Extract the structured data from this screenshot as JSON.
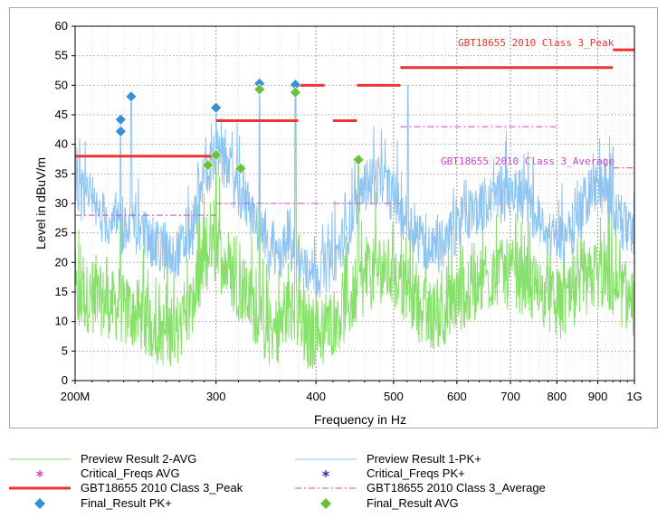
{
  "chart_data": {
    "type": "line",
    "title": "",
    "xlabel": "Frequency in Hz",
    "ylabel": "Level in dBuV/m",
    "xscale": "log",
    "xlim": [
      200,
      1000
    ],
    "ylim": [
      0,
      60
    ],
    "grid": true,
    "yticks": [
      "0",
      "5",
      "10",
      "15",
      "20",
      "25",
      "30",
      "35",
      "40",
      "45",
      "50",
      "55",
      "60"
    ],
    "xticks": [
      {
        "value": 200,
        "label": "200M"
      },
      {
        "value": 300,
        "label": "300"
      },
      {
        "value": 400,
        "label": "400"
      },
      {
        "value": 500,
        "label": "500"
      },
      {
        "value": 600,
        "label": "600"
      },
      {
        "value": 700,
        "label": "700"
      },
      {
        "value": 800,
        "label": "800"
      },
      {
        "value": 900,
        "label": "900"
      },
      {
        "value": 1000,
        "label": "1G"
      }
    ],
    "limit_lines": {
      "peak": {
        "label": "GBT18655 2010  Class 3_Peak",
        "color": "#ee3333",
        "segments": [
          {
            "x": [
              200,
              300
            ],
            "y": 38
          },
          {
            "x": [
              300,
              380
            ],
            "y": 44
          },
          {
            "x": [
              380,
              410
            ],
            "y": 50
          },
          {
            "x": [
              420,
              450
            ],
            "y": 44
          },
          {
            "x": [
              450,
              510
            ],
            "y": 50
          },
          {
            "x": [
              510,
              940
            ],
            "y": 53
          },
          {
            "x": [
              940,
              1000
            ],
            "y": 56
          }
        ]
      },
      "average": {
        "label": "GBT18655 2010  Class 3_Average",
        "color": "#cc44cc",
        "segments": [
          {
            "x": [
              200,
              300
            ],
            "y": 28
          },
          {
            "x": [
              300,
              380
            ],
            "y": 30
          },
          {
            "x": [
              380,
              410
            ],
            "y": 30
          },
          {
            "x": [
              420,
              450
            ],
            "y": 30
          },
          {
            "x": [
              450,
              510
            ],
            "y": 30
          },
          {
            "x": [
              510,
              800
            ],
            "y": 43
          },
          {
            "x": [
              940,
              1000
            ],
            "y": 36
          }
        ]
      }
    },
    "final_pk": {
      "name": "Final_Result PK+",
      "color": "#3a8fd6",
      "points": [
        {
          "x": 228,
          "y": 44.2
        },
        {
          "x": 228,
          "y": 42.2
        },
        {
          "x": 235,
          "y": 48.1
        },
        {
          "x": 300,
          "y": 46.2
        },
        {
          "x": 340,
          "y": 50.3
        },
        {
          "x": 377,
          "y": 50.1
        }
      ]
    },
    "final_avg": {
      "name": "Final_Result AVG",
      "color": "#6ac23a",
      "points": [
        {
          "x": 293,
          "y": 36.5
        },
        {
          "x": 300,
          "y": 38.2
        },
        {
          "x": 322,
          "y": 35.9
        },
        {
          "x": 340,
          "y": 49.3
        },
        {
          "x": 377,
          "y": 48.8
        },
        {
          "x": 452,
          "y": 37.4
        }
      ]
    },
    "pk_trace": {
      "name": "Preview Result 1-PK+",
      "color": "#8fc4f0",
      "envelope": [
        {
          "x": 200,
          "y": 33
        },
        {
          "x": 210,
          "y": 29
        },
        {
          "x": 220,
          "y": 27
        },
        {
          "x": 230,
          "y": 25
        },
        {
          "x": 240,
          "y": 26
        },
        {
          "x": 250,
          "y": 23
        },
        {
          "x": 260,
          "y": 21
        },
        {
          "x": 270,
          "y": 22
        },
        {
          "x": 280,
          "y": 25
        },
        {
          "x": 290,
          "y": 35
        },
        {
          "x": 300,
          "y": 38
        },
        {
          "x": 310,
          "y": 36
        },
        {
          "x": 320,
          "y": 32
        },
        {
          "x": 330,
          "y": 29
        },
        {
          "x": 340,
          "y": 25
        },
        {
          "x": 350,
          "y": 21
        },
        {
          "x": 360,
          "y": 21
        },
        {
          "x": 370,
          "y": 23
        },
        {
          "x": 380,
          "y": 21
        },
        {
          "x": 390,
          "y": 18
        },
        {
          "x": 400,
          "y": 18
        },
        {
          "x": 420,
          "y": 20
        },
        {
          "x": 440,
          "y": 26
        },
        {
          "x": 460,
          "y": 33
        },
        {
          "x": 480,
          "y": 34
        },
        {
          "x": 500,
          "y": 31
        },
        {
          "x": 520,
          "y": 27
        },
        {
          "x": 540,
          "y": 24
        },
        {
          "x": 560,
          "y": 22
        },
        {
          "x": 580,
          "y": 23
        },
        {
          "x": 600,
          "y": 26
        },
        {
          "x": 620,
          "y": 28
        },
        {
          "x": 650,
          "y": 30
        },
        {
          "x": 680,
          "y": 31
        },
        {
          "x": 700,
          "y": 32
        },
        {
          "x": 730,
          "y": 30
        },
        {
          "x": 760,
          "y": 27
        },
        {
          "x": 790,
          "y": 24
        },
        {
          "x": 820,
          "y": 24
        },
        {
          "x": 850,
          "y": 27
        },
        {
          "x": 880,
          "y": 32
        },
        {
          "x": 900,
          "y": 33
        },
        {
          "x": 930,
          "y": 31
        },
        {
          "x": 960,
          "y": 27
        },
        {
          "x": 1000,
          "y": 23
        }
      ],
      "spikes": [
        {
          "x": 228,
          "y": 44
        },
        {
          "x": 235,
          "y": 47.5
        },
        {
          "x": 300,
          "y": 46
        },
        {
          "x": 340,
          "y": 50
        },
        {
          "x": 377,
          "y": 50
        },
        {
          "x": 521,
          "y": 50
        },
        {
          "x": 940,
          "y": 39.5
        }
      ]
    },
    "avg_trace": {
      "name": "Preview Result 2-AVG",
      "color": "#86e06a",
      "envelope": [
        {
          "x": 200,
          "y": 14
        },
        {
          "x": 210,
          "y": 14
        },
        {
          "x": 220,
          "y": 13
        },
        {
          "x": 230,
          "y": 12
        },
        {
          "x": 240,
          "y": 11
        },
        {
          "x": 250,
          "y": 9
        },
        {
          "x": 260,
          "y": 8
        },
        {
          "x": 270,
          "y": 9
        },
        {
          "x": 280,
          "y": 12
        },
        {
          "x": 290,
          "y": 20
        },
        {
          "x": 300,
          "y": 22
        },
        {
          "x": 310,
          "y": 19
        },
        {
          "x": 320,
          "y": 16
        },
        {
          "x": 330,
          "y": 14
        },
        {
          "x": 340,
          "y": 10
        },
        {
          "x": 350,
          "y": 8
        },
        {
          "x": 360,
          "y": 9
        },
        {
          "x": 370,
          "y": 12
        },
        {
          "x": 380,
          "y": 11
        },
        {
          "x": 390,
          "y": 7
        },
        {
          "x": 400,
          "y": 8
        },
        {
          "x": 420,
          "y": 10
        },
        {
          "x": 440,
          "y": 13
        },
        {
          "x": 460,
          "y": 17
        },
        {
          "x": 480,
          "y": 19
        },
        {
          "x": 500,
          "y": 18
        },
        {
          "x": 520,
          "y": 15
        },
        {
          "x": 540,
          "y": 12
        },
        {
          "x": 560,
          "y": 11
        },
        {
          "x": 580,
          "y": 12
        },
        {
          "x": 600,
          "y": 14
        },
        {
          "x": 620,
          "y": 15
        },
        {
          "x": 650,
          "y": 17
        },
        {
          "x": 680,
          "y": 18
        },
        {
          "x": 700,
          "y": 18
        },
        {
          "x": 730,
          "y": 17
        },
        {
          "x": 760,
          "y": 15
        },
        {
          "x": 790,
          "y": 13
        },
        {
          "x": 820,
          "y": 13
        },
        {
          "x": 850,
          "y": 14
        },
        {
          "x": 880,
          "y": 17
        },
        {
          "x": 900,
          "y": 18
        },
        {
          "x": 930,
          "y": 17
        },
        {
          "x": 960,
          "y": 15
        },
        {
          "x": 1000,
          "y": 13
        }
      ],
      "spikes": [
        {
          "x": 228,
          "y": 30
        },
        {
          "x": 300,
          "y": 38
        },
        {
          "x": 340,
          "y": 49
        },
        {
          "x": 377,
          "y": 49
        },
        {
          "x": 452,
          "y": 37
        }
      ]
    }
  },
  "legend": {
    "items": [
      {
        "label": "Preview Result 2-AVG",
        "symbol": "line",
        "color": "#86e06a"
      },
      {
        "label": "Preview Result 1-PK+",
        "symbol": "line",
        "color": "#8fc4f0"
      },
      {
        "label": "Critical_Freqs AVG",
        "symbol": "star",
        "color": "#cc33cc"
      },
      {
        "label": "Critical_Freqs PK+",
        "symbol": "star",
        "color": "#1a2a9c"
      },
      {
        "label": "GBT18655 2010  Class 3_Peak",
        "symbol": "thick-line",
        "color": "#ee3333"
      },
      {
        "label": "GBT18655 2010  Class 3_Average",
        "symbol": "dash-line",
        "color": "#cc44cc"
      },
      {
        "label": "Final_Result PK+",
        "symbol": "diamond",
        "color": "#3a8fd6"
      },
      {
        "label": "Final_Result AVG",
        "symbol": "diamond",
        "color": "#6ac23a"
      }
    ]
  }
}
